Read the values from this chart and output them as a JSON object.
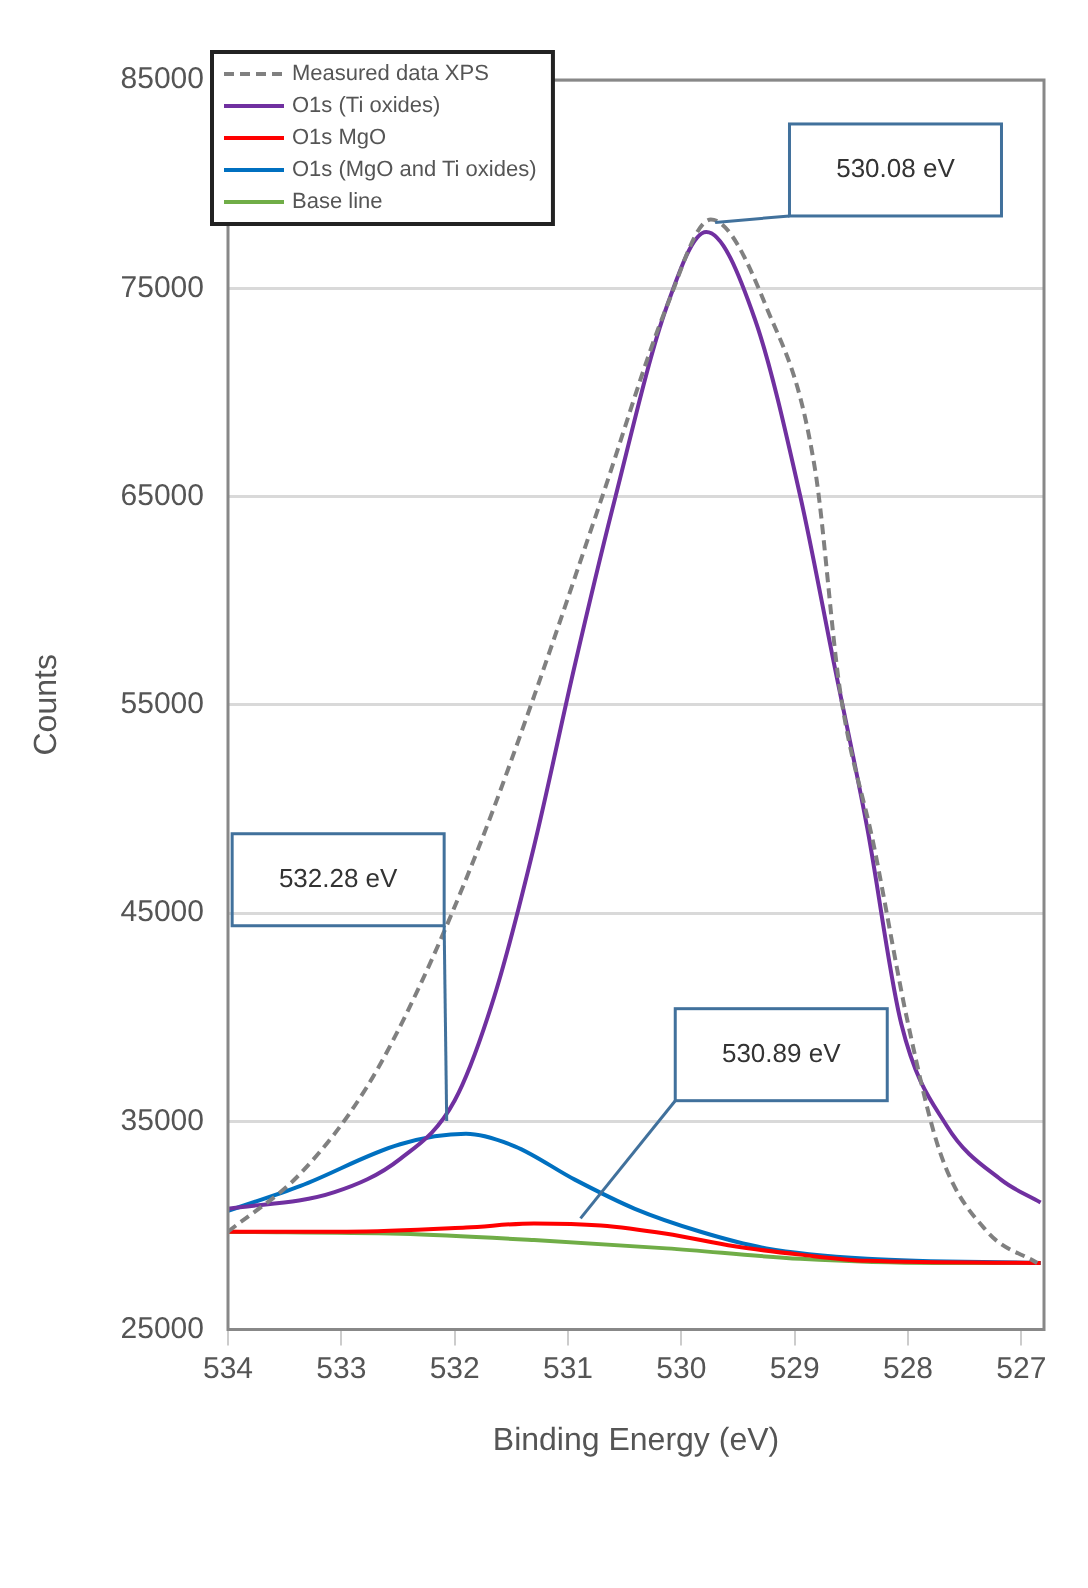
{
  "chart_data": {
    "type": "line",
    "xlabel": "Binding Energy (eV)",
    "ylabel": "Counts",
    "xlim": [
      534,
      526.8
    ],
    "xticks": [
      534,
      533,
      532,
      531,
      530,
      529,
      528,
      527
    ],
    "ylim": [
      25000,
      85000
    ],
    "yticks": [
      25000,
      35000,
      45000,
      55000,
      65000,
      75000,
      85000
    ],
    "grid": "y",
    "legend": "top left",
    "marker": "none",
    "series": [
      {
        "name": "Measured data XPS",
        "color": "#808080",
        "line_style": "dashed",
        "x": [
          534,
          533.36,
          532.78,
          532.3,
          531.77,
          531.3,
          530.71,
          530.13,
          529.74,
          529.25,
          528.82,
          528.6,
          528.3,
          528,
          527.71,
          527.3,
          526.86
        ],
        "values": [
          29700,
          32500,
          36600,
          41600,
          48400,
          55400,
          64800,
          74100,
          78300,
          74100,
          66300,
          55700,
          48200,
          39700,
          33400,
          29700,
          28200
        ]
      },
      {
        "name": "O1s (Ti oxides)",
        "color": "#7030a0",
        "line_style": "solid",
        "x": [
          534,
          533.06,
          532.48,
          532,
          531.65,
          531.3,
          530.94,
          530.59,
          530.13,
          529.78,
          529.35,
          528.95,
          528.65,
          528.36,
          528.06,
          527.66,
          527.18,
          526.83
        ],
        "values": [
          30800,
          31600,
          33200,
          36000,
          41000,
          48200,
          56900,
          64800,
          74100,
          77700,
          73500,
          65000,
          56900,
          49100,
          39700,
          34800,
          32200,
          31100
        ]
      },
      {
        "name": "O1s MgO",
        "color": "#ff0000",
        "line_style": "solid",
        "x": [
          534,
          532.95,
          531.9,
          531.3,
          530.71,
          530.13,
          529.53,
          528.95,
          528.36,
          526.83
        ],
        "values": [
          29700,
          29700,
          29900,
          30100,
          30000,
          29600,
          29000,
          28600,
          28300,
          28200
        ]
      },
      {
        "name": "O1s (MgO and Ti oxides)",
        "color": "#0070c0",
        "line_style": "solid",
        "x": [
          534,
          533.36,
          532.48,
          531.9,
          531.47,
          530.94,
          530.41,
          529.83,
          529.25,
          528.36,
          526.83
        ],
        "values": [
          30700,
          31900,
          33900,
          34400,
          33800,
          32200,
          30800,
          29700,
          28900,
          28400,
          28200
        ]
      },
      {
        "name": "Base line",
        "color": "#70ad47",
        "line_style": "solid",
        "x": [
          534,
          532.48,
          531.3,
          530.13,
          528.95,
          527.76,
          526.83
        ],
        "values": [
          29700,
          29600,
          29300,
          28900,
          28400,
          28200,
          28200
        ]
      }
    ],
    "annotations": [
      "530.08 eV",
      "532.28 eV",
      "530.89 eV"
    ]
  }
}
